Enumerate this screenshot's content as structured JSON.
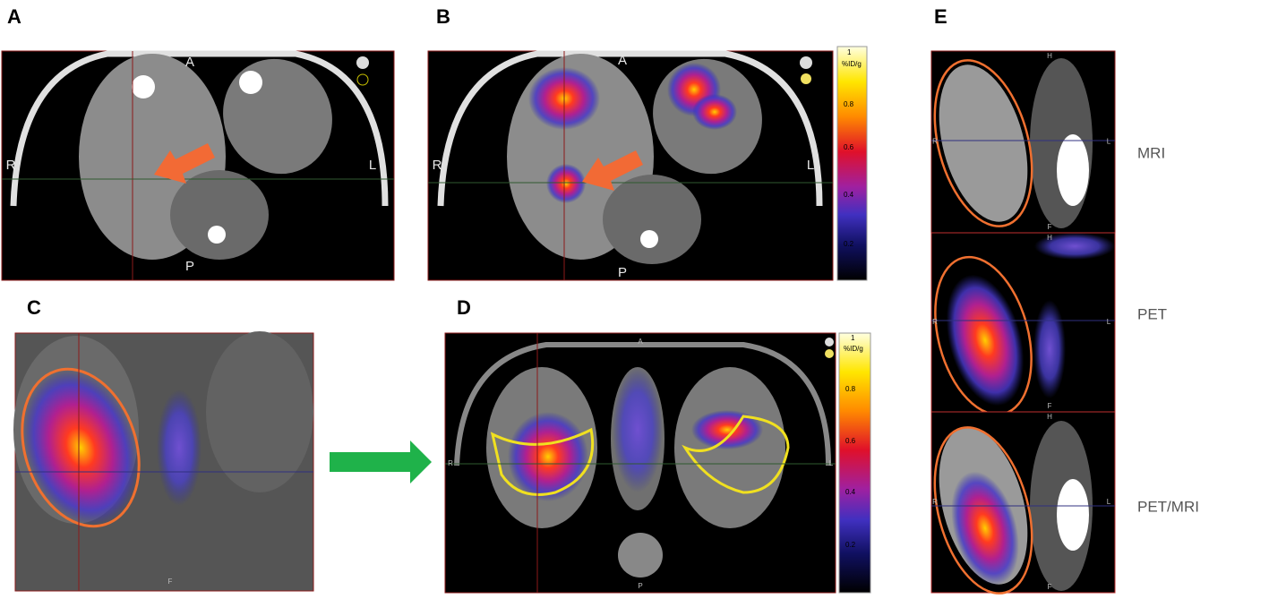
{
  "panels": [
    {
      "letter": "A",
      "labels": {
        "top": "A",
        "bottom": "P",
        "left": "R",
        "right": "L"
      }
    },
    {
      "letter": "B",
      "labels": {
        "top": "A",
        "bottom": "P",
        "left": "R",
        "right": "L"
      },
      "colorbar": {
        "max": "1",
        "unit": "%ID/g",
        "ticks": [
          "0.8",
          "0.6",
          "0.4",
          "0.2"
        ]
      }
    },
    {
      "letter": "C",
      "labels": {
        "bottom": "F"
      }
    },
    {
      "letter": "D",
      "labels": {
        "top": "A",
        "bottom": "P",
        "left": "R",
        "right": "L"
      },
      "colorbar": {
        "max": "1",
        "unit": "%ID/g",
        "ticks": [
          "0.8",
          "0.6",
          "0.4",
          "0.2"
        ]
      }
    },
    {
      "letter": "E",
      "rows": [
        {
          "name": "MRI",
          "labels": {
            "top": "H",
            "bottom": "F",
            "left": "R",
            "right": "L"
          }
        },
        {
          "name": "PET",
          "labels": {
            "top": "H",
            "bottom": "F",
            "left": "R",
            "right": "L"
          }
        },
        {
          "name": "PET/MRI",
          "labels": {
            "top": "H",
            "bottom": "F",
            "left": "R",
            "right": "L"
          }
        }
      ]
    }
  ]
}
